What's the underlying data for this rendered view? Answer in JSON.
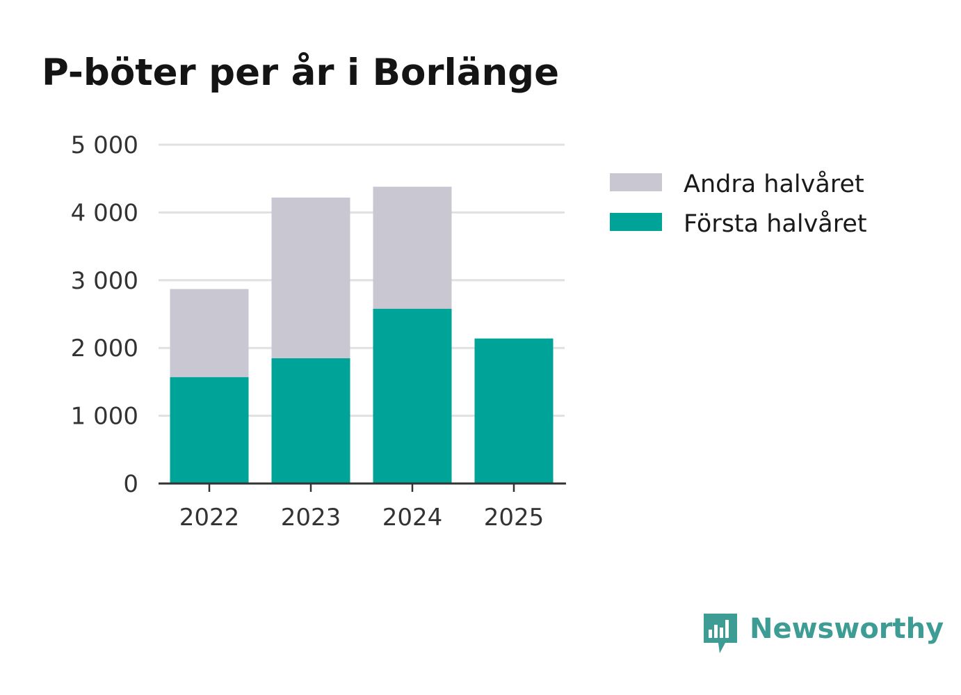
{
  "chart_data": {
    "type": "bar",
    "stacked": true,
    "title": "P-böter per år i Borlänge",
    "categories": [
      "2022",
      "2023",
      "2024",
      "2025"
    ],
    "series": [
      {
        "name": "Första halvåret",
        "values": [
          1570,
          1850,
          2580,
          2140
        ],
        "color": "#00a398"
      },
      {
        "name": "Andra halvåret",
        "values": [
          1300,
          2370,
          1800,
          0
        ],
        "color": "#c8c7d2"
      }
    ],
    "legend_order": [
      "Andra halvåret",
      "Första halvåret"
    ],
    "legend_position": "right",
    "ylim": [
      0,
      5000
    ],
    "yticks": [
      0,
      1000,
      2000,
      3000,
      4000,
      5000
    ],
    "ytick_labels": [
      "0",
      "1 000",
      "2 000",
      "3 000",
      "4 000",
      "5 000"
    ],
    "grid": "horizontal",
    "xlabel": "",
    "ylabel": ""
  },
  "brand": {
    "name": "Newsworthy",
    "logo_icon": "speech-bubble-bar-chart-icon",
    "color": "#3d9c94"
  }
}
